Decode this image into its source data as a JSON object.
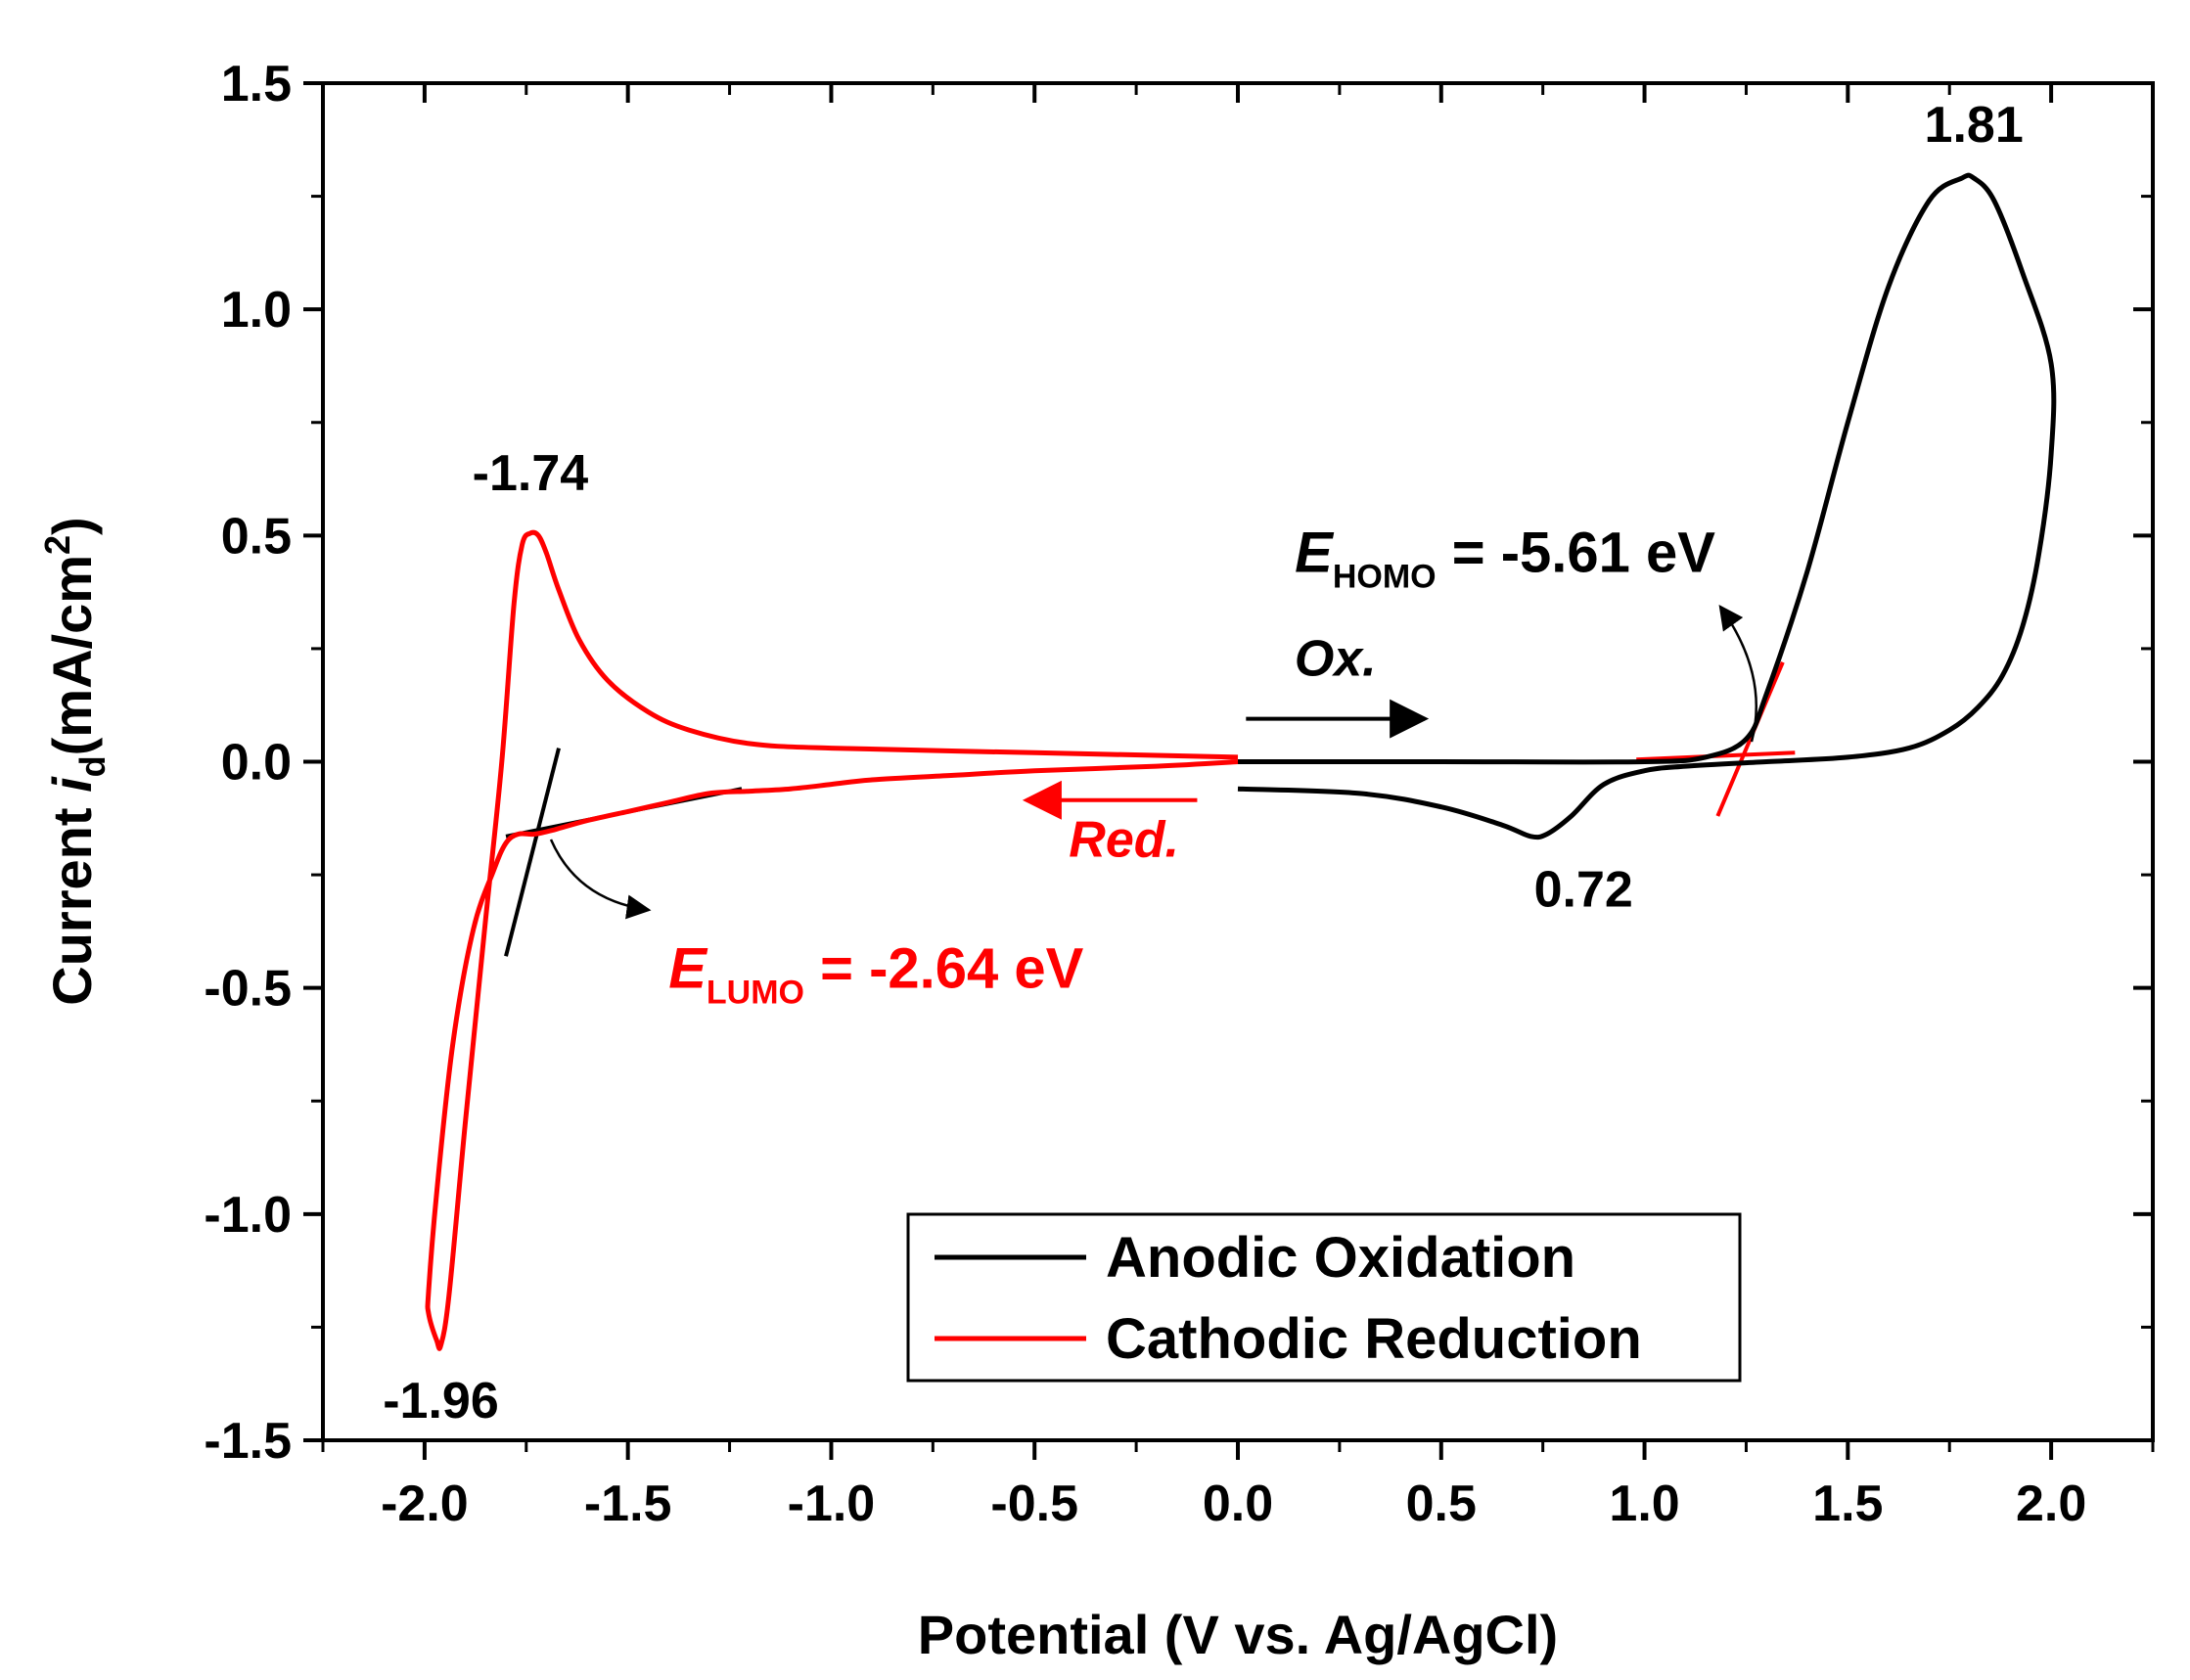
{
  "chart_data": {
    "type": "line",
    "title": "",
    "xlabel": "Potential (V vs. Ag/AgCl)",
    "ylabel": {
      "prefix": "Current ",
      "var": "i",
      "sub": "d",
      "unit": "(mA/cm",
      "sup": "2",
      "close": ")"
    },
    "xlim": [
      -2.25,
      2.25
    ],
    "ylim": [
      -1.5,
      1.5
    ],
    "xticks": [
      -2.0,
      -1.5,
      -1.0,
      -0.5,
      0.0,
      0.5,
      1.0,
      1.5,
      2.0
    ],
    "xtick_labels": [
      "-2.0",
      "-1.5",
      "-1.0",
      "-0.5",
      "0.0",
      "0.5",
      "1.0",
      "1.5",
      "2.0"
    ],
    "yticks": [
      -1.5,
      -1.0,
      -0.5,
      0.0,
      0.5,
      1.0,
      1.5
    ],
    "ytick_labels": [
      "-1.5",
      "-1.0",
      "-0.5",
      "0.0",
      "0.5",
      "1.0",
      "1.5"
    ],
    "grid": false,
    "legend_position": "bottom-right",
    "series": [
      {
        "name": "Anodic Oxidation",
        "color": "#000000",
        "x": [
          0.0,
          0.5,
          1.0,
          1.15,
          1.25,
          1.3,
          1.4,
          1.5,
          1.6,
          1.7,
          1.78,
          1.81,
          1.86,
          1.93,
          2.0,
          2.0,
          1.97,
          1.93,
          1.88,
          1.82,
          1.75,
          1.65,
          1.5,
          1.3,
          1.1,
          1.0,
          0.9,
          0.82,
          0.76,
          0.72,
          0.65,
          0.5,
          0.3,
          0.0
        ],
        "y": [
          0.0,
          0.0,
          0.0,
          0.01,
          0.05,
          0.15,
          0.42,
          0.75,
          1.05,
          1.24,
          1.29,
          1.29,
          1.24,
          1.08,
          0.88,
          0.68,
          0.46,
          0.3,
          0.19,
          0.12,
          0.07,
          0.03,
          0.01,
          0.0,
          -0.01,
          -0.02,
          -0.05,
          -0.12,
          -0.16,
          -0.165,
          -0.14,
          -0.1,
          -0.07,
          -0.06
        ]
      },
      {
        "name": "Cathodic Reduction",
        "color": "#ff0000",
        "x": [
          0.0,
          -0.5,
          -1.0,
          -1.2,
          -1.35,
          -1.45,
          -1.55,
          -1.62,
          -1.67,
          -1.7,
          -1.72,
          -1.74,
          -1.76,
          -1.78,
          -1.81,
          -1.85,
          -1.9,
          -1.94,
          -1.96,
          -1.97,
          -1.99,
          -1.99,
          -1.97,
          -1.93,
          -1.88,
          -1.83,
          -1.8,
          -1.77,
          -1.73,
          -1.68,
          -1.6,
          -1.5,
          -1.4,
          -1.3,
          -1.2,
          -1.1,
          -1.0,
          -0.9,
          -0.7,
          -0.5,
          -0.2,
          0.0
        ],
        "y": [
          0.01,
          0.02,
          0.03,
          0.04,
          0.07,
          0.11,
          0.18,
          0.27,
          0.38,
          0.46,
          0.5,
          0.505,
          0.48,
          0.35,
          0.0,
          -0.35,
          -0.8,
          -1.18,
          -1.29,
          -1.28,
          -1.22,
          -1.17,
          -0.95,
          -0.62,
          -0.37,
          -0.24,
          -0.18,
          -0.16,
          -0.16,
          -0.15,
          -0.13,
          -0.11,
          -0.09,
          -0.07,
          -0.065,
          -0.06,
          -0.05,
          -0.04,
          -0.03,
          -0.02,
          -0.01,
          0.0
        ]
      }
    ],
    "tangent_lines": [
      {
        "name": "lumo-tangent-steep",
        "color": "#000000",
        "x": [
          -1.8,
          -1.67
        ],
        "y": [
          -0.43,
          0.03
        ]
      },
      {
        "name": "lumo-tangent-baseline",
        "color": "#000000",
        "x": [
          -1.8,
          -1.22
        ],
        "y": [
          -0.165,
          -0.06
        ]
      },
      {
        "name": "homo-tangent-steep",
        "color": "#ff0000",
        "x": [
          1.18,
          1.34
        ],
        "y": [
          -0.12,
          0.22
        ]
      },
      {
        "name": "homo-tangent-baseline",
        "color": "#ff0000",
        "x": [
          0.98,
          1.37
        ],
        "y": [
          0.005,
          0.02
        ]
      }
    ],
    "peak_labels": [
      {
        "text": "1.81",
        "x": 1.81,
        "y": 1.37,
        "color": "#000000"
      },
      {
        "text": "-1.74",
        "x": -1.74,
        "y": 0.6,
        "color": "#000000"
      },
      {
        "text": "-1.96",
        "x": -1.96,
        "y": -1.45,
        "color": "#000000"
      },
      {
        "text": "0.72",
        "x": 0.85,
        "y": -0.32,
        "color": "#000000"
      }
    ],
    "direction_labels": [
      {
        "text": "Ox.",
        "color": "#000000",
        "arrow_from": [
          0.02,
          0.095
        ],
        "arrow_to": [
          0.46,
          0.095
        ],
        "label_at": [
          0.24,
          0.19
        ]
      },
      {
        "text": "Red.",
        "color": "#ff0000",
        "arrow_from": [
          -0.1,
          -0.085
        ],
        "arrow_to": [
          -0.52,
          -0.085
        ],
        "label_at": [
          -0.28,
          -0.21
        ]
      }
    ],
    "energy_labels": [
      {
        "symbol": "E",
        "sub": "LUMO",
        "value": " = -2.64 eV",
        "color": "#ff0000",
        "x": -1.4,
        "y": -0.5
      },
      {
        "symbol": "E",
        "sub": "HOMO",
        "value": " = -5.61 eV",
        "color": "#000000",
        "x": 0.14,
        "y": 0.42
      }
    ]
  }
}
